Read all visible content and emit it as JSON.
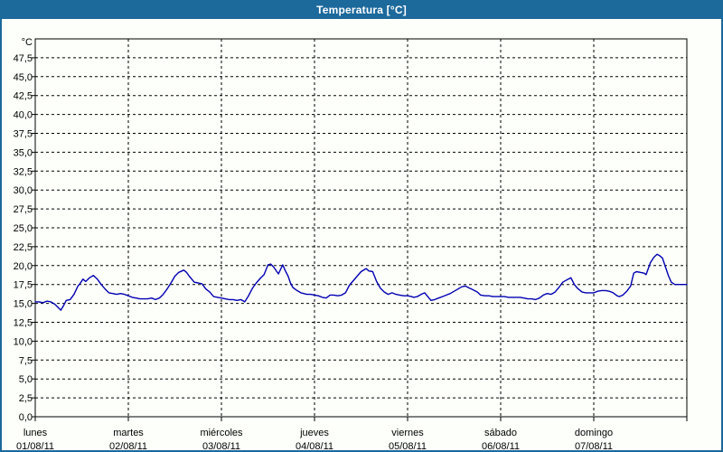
{
  "window": {
    "title": "Temperatura [°C]"
  },
  "colors": {
    "titlebar_bg": "#1c699c",
    "frame": "#1c699c",
    "window_bg": "#fdfffa",
    "plot_bg": "#fdfffa",
    "grid": "#000000",
    "line": "#0000b2",
    "title_text": "#ffffff",
    "label_text": "#000000"
  },
  "chart_data": {
    "type": "line",
    "title": "Temperatura [°C]",
    "y_unit_label": "°C",
    "ylim": [
      0,
      50
    ],
    "y_tick_step": 2.5,
    "y_tick_labels": [
      "0,0",
      "2,5",
      "5,0",
      "7,5",
      "10,0",
      "12,5",
      "15,0",
      "17,5",
      "20,0",
      "22,5",
      "25,0",
      "27,5",
      "30,0",
      "32,5",
      "35,0",
      "37,5",
      "40,0",
      "42,5",
      "45,0",
      "47,5"
    ],
    "grid": "dashed",
    "legend_position": "none",
    "x_days": [
      {
        "name": "lunes",
        "date": "01/08/11"
      },
      {
        "name": "martes",
        "date": "02/08/11"
      },
      {
        "name": "miércoles",
        "date": "03/08/11"
      },
      {
        "name": "jueves",
        "date": "04/08/11"
      },
      {
        "name": "viernes",
        "date": "05/08/11"
      },
      {
        "name": "sábado",
        "date": "06/08/11"
      },
      {
        "name": "domingo",
        "date": "07/08/11"
      }
    ],
    "series": [
      {
        "name": "Temperatura",
        "color": "#0000b2",
        "x_unit": "hours_from_monday_00h",
        "points": [
          [
            0,
            15.2
          ],
          [
            1,
            15.2
          ],
          [
            2,
            15.1
          ],
          [
            3,
            15.3
          ],
          [
            4,
            15.2
          ],
          [
            5,
            14.9
          ],
          [
            6,
            14.4
          ],
          [
            6.6,
            14.1
          ],
          [
            7.3,
            14.7
          ],
          [
            8,
            15.4
          ],
          [
            9,
            15.5
          ],
          [
            10,
            16.2
          ],
          [
            11,
            17.3
          ],
          [
            11.5,
            17.6
          ],
          [
            12.3,
            18.2
          ],
          [
            13,
            17.9
          ],
          [
            14,
            18.4
          ],
          [
            15,
            18.7
          ],
          [
            16,
            18.2
          ],
          [
            17,
            17.5
          ],
          [
            18,
            16.9
          ],
          [
            19,
            16.4
          ],
          [
            20,
            16.3
          ],
          [
            21,
            16.2
          ],
          [
            22,
            16.3
          ],
          [
            23,
            16.2
          ],
          [
            24,
            16.0
          ],
          [
            25,
            15.8
          ],
          [
            26,
            15.7
          ],
          [
            27,
            15.6
          ],
          [
            28,
            15.6
          ],
          [
            29,
            15.6
          ],
          [
            30,
            15.7
          ],
          [
            31,
            15.5
          ],
          [
            32,
            15.7
          ],
          [
            33,
            16.2
          ],
          [
            34,
            16.9
          ],
          [
            35,
            17.7
          ],
          [
            36,
            18.6
          ],
          [
            37,
            19.1
          ],
          [
            38.3,
            19.4
          ],
          [
            39,
            19.1
          ],
          [
            39.7,
            18.6
          ],
          [
            41,
            17.8
          ],
          [
            42,
            17.7
          ],
          [
            43,
            17.6
          ],
          [
            44,
            16.9
          ],
          [
            45,
            16.5
          ],
          [
            46,
            15.9
          ],
          [
            47,
            15.8
          ],
          [
            48,
            15.7
          ],
          [
            49,
            15.6
          ],
          [
            50,
            15.5
          ],
          [
            51,
            15.5
          ],
          [
            52,
            15.4
          ],
          [
            53,
            15.5
          ],
          [
            54,
            15.2
          ],
          [
            55,
            16.0
          ],
          [
            56,
            17.0
          ],
          [
            57,
            17.7
          ],
          [
            58,
            18.3
          ],
          [
            59,
            18.8
          ],
          [
            60,
            20.1
          ],
          [
            60.7,
            20.2
          ],
          [
            61.5,
            19.8
          ],
          [
            62.7,
            18.9
          ],
          [
            63.8,
            20.1
          ],
          [
            64.5,
            19.3
          ],
          [
            65.2,
            18.6
          ],
          [
            65.8,
            17.7
          ],
          [
            66.4,
            17.1
          ],
          [
            67.5,
            16.7
          ],
          [
            68.5,
            16.4
          ],
          [
            70,
            16.2
          ],
          [
            71,
            16.2
          ],
          [
            72,
            16.1
          ],
          [
            73,
            16.0
          ],
          [
            74,
            15.8
          ],
          [
            75,
            15.7
          ],
          [
            76,
            16.1
          ],
          [
            77,
            16.1
          ],
          [
            78,
            16.0
          ],
          [
            79,
            16.1
          ],
          [
            80,
            16.4
          ],
          [
            81,
            17.4
          ],
          [
            82,
            18.0
          ],
          [
            83,
            18.6
          ],
          [
            84,
            19.2
          ],
          [
            85.3,
            19.6
          ],
          [
            86,
            19.3
          ],
          [
            87,
            19.2
          ],
          [
            88,
            17.9
          ],
          [
            89,
            17.0
          ],
          [
            90,
            16.5
          ],
          [
            91,
            16.2
          ],
          [
            92,
            16.4
          ],
          [
            93,
            16.2
          ],
          [
            94,
            16.1
          ],
          [
            95,
            16.0
          ],
          [
            96,
            16.0
          ],
          [
            97,
            15.9
          ],
          [
            97.6,
            15.8
          ],
          [
            98.5,
            15.9
          ],
          [
            99.5,
            16.2
          ],
          [
            100.4,
            16.4
          ],
          [
            101.2,
            15.9
          ],
          [
            102,
            15.4
          ],
          [
            103,
            15.5
          ],
          [
            104,
            15.7
          ],
          [
            105,
            15.9
          ],
          [
            106,
            16.1
          ],
          [
            107,
            16.3
          ],
          [
            108,
            16.6
          ],
          [
            109,
            16.9
          ],
          [
            110,
            17.2
          ],
          [
            110.9,
            17.3
          ],
          [
            112,
            17.0
          ],
          [
            112.5,
            16.9
          ],
          [
            114,
            16.5
          ],
          [
            114.8,
            16.1
          ],
          [
            116,
            16.0
          ],
          [
            117,
            16.0
          ],
          [
            118,
            15.9
          ],
          [
            119,
            15.9
          ],
          [
            120,
            15.9
          ],
          [
            121,
            15.9
          ],
          [
            122,
            15.8
          ],
          [
            123,
            15.8
          ],
          [
            124,
            15.8
          ],
          [
            125,
            15.8
          ],
          [
            126,
            15.7
          ],
          [
            127,
            15.6
          ],
          [
            128,
            15.6
          ],
          [
            129,
            15.5
          ],
          [
            130,
            15.7
          ],
          [
            131,
            16.1
          ],
          [
            132,
            16.3
          ],
          [
            133,
            16.2
          ],
          [
            134,
            16.5
          ],
          [
            135,
            17.1
          ],
          [
            136,
            17.8
          ],
          [
            137,
            18.1
          ],
          [
            138.1,
            18.4
          ],
          [
            139,
            17.5
          ],
          [
            139.8,
            17.0
          ],
          [
            141,
            16.5
          ],
          [
            142,
            16.4
          ],
          [
            143,
            16.4
          ],
          [
            144,
            16.4
          ],
          [
            145,
            16.6
          ],
          [
            146,
            16.7
          ],
          [
            147,
            16.7
          ],
          [
            148,
            16.6
          ],
          [
            149,
            16.4
          ],
          [
            150,
            16.0
          ],
          [
            150.6,
            15.9
          ],
          [
            151.5,
            16.1
          ],
          [
            152.5,
            16.6
          ],
          [
            153.5,
            17.3
          ],
          [
            154.3,
            19.0
          ],
          [
            155,
            19.2
          ],
          [
            156,
            19.1
          ],
          [
            157,
            19.0
          ],
          [
            157.5,
            18.8
          ],
          [
            158.6,
            20.4
          ],
          [
            159.5,
            21.1
          ],
          [
            160.3,
            21.5
          ],
          [
            161,
            21.3
          ],
          [
            161.7,
            21.0
          ],
          [
            162.5,
            19.8
          ],
          [
            163.3,
            18.6
          ],
          [
            164,
            17.8
          ],
          [
            164.9,
            17.5
          ],
          [
            166,
            17.5
          ],
          [
            167,
            17.5
          ],
          [
            168,
            17.5
          ]
        ]
      }
    ]
  }
}
